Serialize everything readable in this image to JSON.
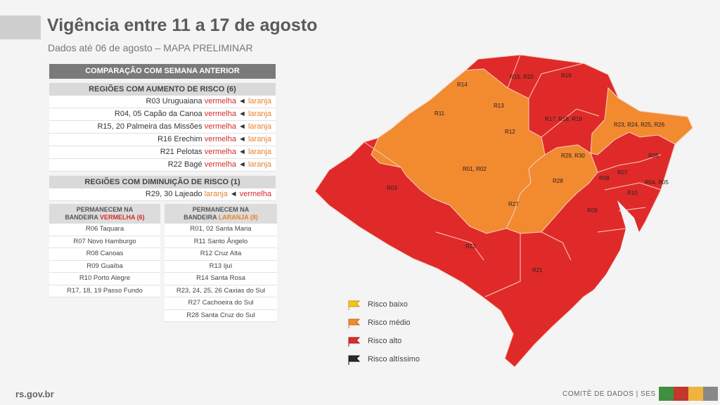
{
  "header": {
    "title": "Vigência entre 11 a 17 de agosto",
    "subtitle": "Dados até 06 de agosto – MAPA PRELIMINAR"
  },
  "comparison": {
    "title": "COMPARAÇÃO COM SEMANA ANTERIOR",
    "increase_title": "REGIÕES COM AUMENTO DE RISCO (6)",
    "increase_rows": [
      {
        "region": "R03 Uruguaiana",
        "from": "vermelha",
        "arrow": "◄",
        "to": "laranja"
      },
      {
        "region": "R04, 05 Capão da Canoa",
        "from": "vermelha",
        "arrow": "◄",
        "to": "laranja"
      },
      {
        "region": "R15, 20 Palmeira das Missões",
        "from": "vermelha",
        "arrow": "◄",
        "to": "laranja"
      },
      {
        "region": "R16 Erechim",
        "from": "vermelha",
        "arrow": "◄",
        "to": "laranja"
      },
      {
        "region": "R21 Pelotas",
        "from": "vermelha",
        "arrow": "◄",
        "to": "laranja"
      },
      {
        "region": "R22 Bagé",
        "from": "vermelha",
        "arrow": "◄",
        "to": "laranja"
      }
    ],
    "decrease_title": "REGIÕES COM DIMINUIÇÃO DE RISCO (1)",
    "decrease_rows": [
      {
        "region": "R29, 30 Lajeado",
        "from": "laranja",
        "arrow": "◄",
        "to": "vermelha"
      }
    ]
  },
  "remain_red": {
    "header_line1": "PERMANECEM NA",
    "header_line2_prefix": "BANDEIRA",
    "header_flag": "VERMELHA (6)",
    "items": [
      "R06 Taquara",
      "R07 Novo Hamburgo",
      "R08 Canoas",
      "R09 Guaíba",
      "R10 Porto Alegre",
      "R17, 18, 19 Passo Fundo"
    ]
  },
  "remain_orange": {
    "header_line1": "PERMANECEM NA",
    "header_line2_prefix": "BANDEIRA",
    "header_flag": "LARANJA (8)",
    "items": [
      "R01, 02 Santa Maria",
      "R11 Santo Ângelo",
      "R12 Cruz Alta",
      "R13 Ijuí",
      "R14 Santa Rosa",
      "R23, 24, 25, 26 Caxias do Sul",
      "R27 Cachoeira do Sul",
      "R28 Santa Cruz do Sul"
    ]
  },
  "map": {
    "colors": {
      "red": "#e02a2a",
      "orange": "#f28a30",
      "border": "#f6d0c0"
    },
    "labels": [
      "R15, R20",
      "R16",
      "R14",
      "R13",
      "R11",
      "R12",
      "R17, R18, R19",
      "R23, R24, R25, R26",
      "R06",
      "R29, R30",
      "R01, R02",
      "R28",
      "R07",
      "R08",
      "R04, R05",
      "R10",
      "R03",
      "R27",
      "R09",
      "R22",
      "R21"
    ]
  },
  "legend": [
    {
      "label": "Risco baixo",
      "color": "#f5c518",
      "icon": "yellow-flag-icon"
    },
    {
      "label": "Risco médio",
      "color": "#f28a30",
      "icon": "orange-flag-icon"
    },
    {
      "label": "Risco alto",
      "color": "#e02a2a",
      "icon": "red-flag-icon"
    },
    {
      "label": "Risco altíssimo",
      "color": "#2a2a2a",
      "icon": "black-flag-icon"
    }
  ],
  "footer": {
    "left": "rs.gov.br",
    "right": "COMITÊ DE DADOS | SES",
    "stripe_colors": [
      "#3f8f3f",
      "#c0392b",
      "#f0b43c",
      "#888888"
    ]
  }
}
